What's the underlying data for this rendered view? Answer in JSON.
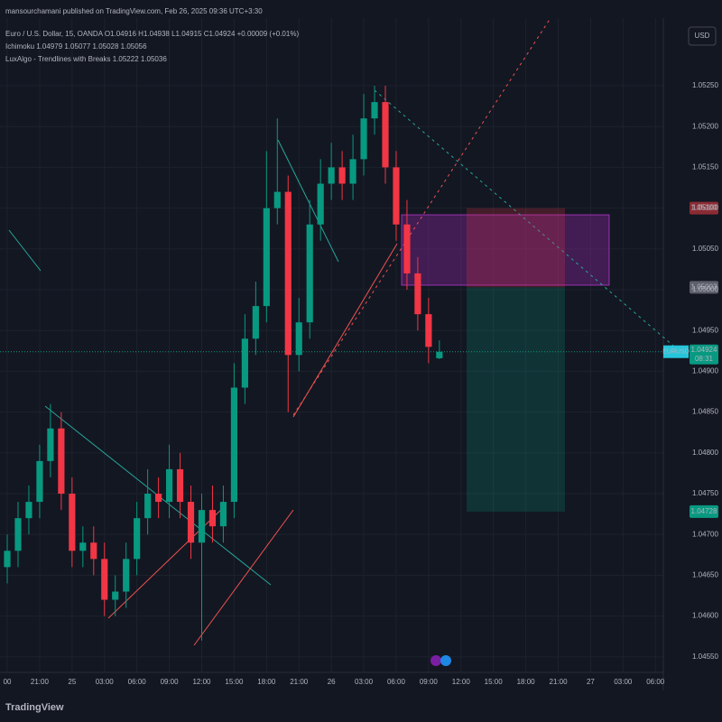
{
  "screen": {
    "publisher": "mansourchamani published on TradingView.com, Feb 26, 2025 09:36 UTC+3:30",
    "legend": {
      "symbol": "Euro / U.S. Dollar, 15, OANDA  O1.04916 H1.04938 L1.04915 C1.04924 +0.00009 (+0.01%)",
      "ichimoku": "Ichimoku  1.04979  1.05077  1.05028  1.05056",
      "luxalgo": "LuxAlgo - Trendlines with Breaks  1.05222  1.05036"
    },
    "currency": "USD",
    "footer": {
      "logo": "TradingView"
    }
  },
  "chart_data": {
    "type": "candlestick",
    "x": [
      0,
      1,
      2,
      3,
      4,
      5,
      6,
      7,
      8,
      9,
      10,
      11,
      12,
      13,
      14,
      15,
      16,
      17,
      18,
      19,
      20,
      21,
      22,
      23,
      24,
      25,
      26,
      27,
      28,
      29,
      30,
      31,
      32,
      33,
      34,
      35,
      36,
      37,
      38,
      39,
      40
    ],
    "open": [
      1.0466,
      1.0468,
      1.0472,
      1.0474,
      1.0479,
      1.0483,
      1.0475,
      1.0468,
      1.0469,
      1.0467,
      1.0462,
      1.0463,
      1.0467,
      1.0472,
      1.0475,
      1.0474,
      1.0478,
      1.0474,
      1.0469,
      1.0473,
      1.0471,
      1.0474,
      1.0488,
      1.0494,
      1.0498,
      1.051,
      1.0512,
      1.0492,
      1.0496,
      1.0508,
      1.0513,
      1.0515,
      1.0513,
      1.0516,
      1.0521,
      1.0523,
      1.0515,
      1.0508,
      1.0502,
      1.0497,
      1.04916
    ],
    "high": [
      1.047,
      1.0474,
      1.0476,
      1.0481,
      1.0486,
      1.0485,
      1.0477,
      1.0471,
      1.0471,
      1.0469,
      1.0465,
      1.0469,
      1.0474,
      1.0478,
      1.0477,
      1.0481,
      1.048,
      1.0476,
      1.0475,
      1.0476,
      1.0476,
      1.0491,
      1.0497,
      1.0501,
      1.0517,
      1.0521,
      1.0514,
      1.0499,
      1.0511,
      1.0516,
      1.0518,
      1.0517,
      1.0519,
      1.0524,
      1.0525,
      1.0525,
      1.0517,
      1.0511,
      1.0504,
      1.0499,
      1.04938
    ],
    "low": [
      1.0464,
      1.0466,
      1.047,
      1.0472,
      1.0477,
      1.0473,
      1.0466,
      1.0466,
      1.0465,
      1.046,
      1.046,
      1.0461,
      1.0465,
      1.047,
      1.0472,
      1.0472,
      1.0472,
      1.0467,
      1.0457,
      1.0469,
      1.0469,
      1.0472,
      1.0486,
      1.0492,
      1.0496,
      1.0508,
      1.0485,
      1.049,
      1.0494,
      1.0506,
      1.0511,
      1.0511,
      1.0511,
      1.0514,
      1.0519,
      1.0513,
      1.0506,
      1.05,
      1.0495,
      1.0491,
      1.04915
    ],
    "close": [
      1.0468,
      1.0472,
      1.0474,
      1.0479,
      1.0483,
      1.0475,
      1.0468,
      1.0469,
      1.0467,
      1.0462,
      1.0463,
      1.0467,
      1.0472,
      1.0475,
      1.0474,
      1.0478,
      1.0474,
      1.0469,
      1.0473,
      1.0471,
      1.0474,
      1.0488,
      1.0494,
      1.0498,
      1.051,
      1.0512,
      1.0492,
      1.0496,
      1.0508,
      1.0513,
      1.0515,
      1.0513,
      1.0516,
      1.0521,
      1.0523,
      1.0515,
      1.0508,
      1.0502,
      1.0497,
      1.0493,
      1.04924
    ],
    "up_color": "#089981",
    "down_color": "#f23645",
    "xlim": [
      -0.67,
      60.73
    ],
    "ylim": [
      1.04531,
      1.05333
    ],
    "xticks": [
      {
        "value": 0,
        "label": "00"
      },
      {
        "value": 3,
        "label": "21:00"
      },
      {
        "value": 6,
        "label": "25"
      },
      {
        "value": 9,
        "label": "03:00"
      },
      {
        "value": 12,
        "label": "06:00"
      },
      {
        "value": 15,
        "label": "09:00"
      },
      {
        "value": 18,
        "label": "12:00"
      },
      {
        "value": 21,
        "label": "15:00"
      },
      {
        "value": 24,
        "label": "18:00"
      },
      {
        "value": 27,
        "label": "21:00"
      },
      {
        "value": 30,
        "label": "26"
      },
      {
        "value": 33,
        "label": "03:00"
      },
      {
        "value": 36,
        "label": "06:00"
      },
      {
        "value": 39,
        "label": "09:00"
      },
      {
        "value": 42,
        "label": "12:00"
      },
      {
        "value": 45,
        "label": "15:00"
      },
      {
        "value": 48,
        "label": "18:00"
      },
      {
        "value": 51,
        "label": "21:00"
      },
      {
        "value": 54,
        "label": "27"
      },
      {
        "value": 57,
        "label": "03:00"
      },
      {
        "value": 60,
        "label": "06:00"
      }
    ],
    "yticks": [
      {
        "value": 1.0525,
        "label": "1.05250"
      },
      {
        "value": 1.052,
        "label": "1.05200"
      },
      {
        "value": 1.0515,
        "label": "1.05150"
      },
      {
        "value": 1.051,
        "label": "1.05100"
      },
      {
        "value": 1.0505,
        "label": "1.05050"
      },
      {
        "value": 1.05,
        "label": "1.05000"
      },
      {
        "value": 1.0495,
        "label": "1.04950"
      },
      {
        "value": 1.049,
        "label": "1.04900"
      },
      {
        "value": 1.0485,
        "label": "1.04850"
      },
      {
        "value": 1.048,
        "label": "1.04800"
      },
      {
        "value": 1.0475,
        "label": "1.04750"
      },
      {
        "value": 1.047,
        "label": "1.04700"
      },
      {
        "value": 1.0465,
        "label": "1.04650"
      },
      {
        "value": 1.046,
        "label": "1.04600"
      },
      {
        "value": 1.0455,
        "label": "1.04550"
      }
    ],
    "grid": true,
    "stop_tag": {
      "value": 1.051,
      "label": "1.05100"
    },
    "entry_tag": {
      "value": 1.05003,
      "label": "1.05003"
    },
    "target_tag": {
      "value": 1.04728,
      "label": "1.04728"
    },
    "current_tag": {
      "value": 1.04924,
      "label": "1.04924",
      "symbol": "EURUSD",
      "countdown": "08:31"
    }
  }
}
